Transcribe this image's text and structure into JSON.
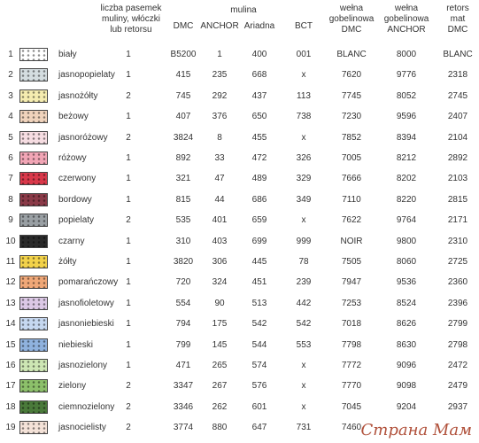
{
  "header": {
    "count": "liczba pasemek\nmuliny, włóczki\nlub retorsu",
    "mulina": "mulina",
    "columns": [
      "DMC",
      "ANCHOR",
      "Ariadna",
      "BCT"
    ],
    "wool_dmc": "wełna\ngobelinowa\nDMC",
    "wool_anchor": "wełna\ngobelinowa\nANCHOR",
    "retors": "retors\nmat\nDMC"
  },
  "table": {
    "rows": [
      {
        "no": "1",
        "name": "biały",
        "count": "1",
        "cells": [
          "B5200",
          "1",
          "400",
          "001",
          "BLANC",
          "8000",
          "BLANC"
        ],
        "swatch": "#ffffff"
      },
      {
        "no": "2",
        "name": "jasnopopielaty",
        "count": "1",
        "cells": [
          "415",
          "235",
          "668",
          "x",
          "7620",
          "9776",
          "2318"
        ],
        "swatch": "#d4dde0"
      },
      {
        "no": "3",
        "name": "jasnożółty",
        "count": "2",
        "cells": [
          "745",
          "292",
          "437",
          "113",
          "7745",
          "8052",
          "2745"
        ],
        "swatch": "#f5ecb0"
      },
      {
        "no": "4",
        "name": "beżowy",
        "count": "1",
        "cells": [
          "407",
          "376",
          "650",
          "738",
          "7230",
          "9596",
          "2407"
        ],
        "swatch": "#f0d3bc"
      },
      {
        "no": "5",
        "name": "jasnoróżowy",
        "count": "2",
        "cells": [
          "3824",
          "8",
          "455",
          "x",
          "7852",
          "8394",
          "2104"
        ],
        "swatch": "#f6dde2"
      },
      {
        "no": "6",
        "name": "różowy",
        "count": "1",
        "cells": [
          "892",
          "33",
          "472",
          "326",
          "7005",
          "8212",
          "2892"
        ],
        "swatch": "#f2a6b6"
      },
      {
        "no": "7",
        "name": "czerwony",
        "count": "1",
        "cells": [
          "321",
          "47",
          "489",
          "329",
          "7666",
          "8202",
          "2103"
        ],
        "swatch": "#d9384a"
      },
      {
        "no": "8",
        "name": "bordowy",
        "count": "1",
        "cells": [
          "815",
          "44",
          "686",
          "349",
          "7110",
          "8220",
          "2815"
        ],
        "swatch": "#8a3a48"
      },
      {
        "no": "9",
        "name": "popielaty",
        "count": "2",
        "cells": [
          "535",
          "401",
          "659",
          "x",
          "7622",
          "9764",
          "2171"
        ],
        "swatch": "#9aa0a4"
      },
      {
        "no": "10",
        "name": "czarny",
        "count": "1",
        "cells": [
          "310",
          "403",
          "699",
          "999",
          "NOIR",
          "9800",
          "2310"
        ],
        "swatch": "#2a2a2a"
      },
      {
        "no": "11",
        "name": "żółty",
        "count": "1",
        "cells": [
          "3820",
          "306",
          "445",
          "78",
          "7505",
          "8060",
          "2725"
        ],
        "swatch": "#f2d24a"
      },
      {
        "no": "12",
        "name": "pomarańczowy",
        "count": "1",
        "cells": [
          "720",
          "324",
          "451",
          "239",
          "7947",
          "9536",
          "2360"
        ],
        "swatch": "#f0a878"
      },
      {
        "no": "13",
        "name": "jasnofioletowy",
        "count": "1",
        "cells": [
          "554",
          "90",
          "513",
          "442",
          "7253",
          "8524",
          "2396"
        ],
        "swatch": "#dcc8e6"
      },
      {
        "no": "14",
        "name": "jasnoniebieski",
        "count": "1",
        "cells": [
          "794",
          "175",
          "542",
          "542",
          "7018",
          "8626",
          "2799"
        ],
        "swatch": "#c6d8f0"
      },
      {
        "no": "15",
        "name": "niebieski",
        "count": "1",
        "cells": [
          "799",
          "145",
          "544",
          "553",
          "7798",
          "8630",
          "2798"
        ],
        "swatch": "#8fb2de"
      },
      {
        "no": "16",
        "name": "jasnozielony",
        "count": "1",
        "cells": [
          "471",
          "265",
          "574",
          "x",
          "7772",
          "9096",
          "2472"
        ],
        "swatch": "#cde6b4"
      },
      {
        "no": "17",
        "name": "zielony",
        "count": "2",
        "cells": [
          "3347",
          "267",
          "576",
          "x",
          "7770",
          "9098",
          "2479"
        ],
        "swatch": "#8cc06a"
      },
      {
        "no": "18",
        "name": "ciemnozielony",
        "count": "2",
        "cells": [
          "3346",
          "262",
          "601",
          "x",
          "7045",
          "9204",
          "2937"
        ],
        "swatch": "#4a7a3a"
      },
      {
        "no": "19",
        "name": "jasnocielisty",
        "count": "2",
        "cells": [
          "3774",
          "880",
          "647",
          "731",
          "7460"
        ],
        "swatch": "#f4e2d8"
      }
    ]
  },
  "watermark": "Страна Мам"
}
